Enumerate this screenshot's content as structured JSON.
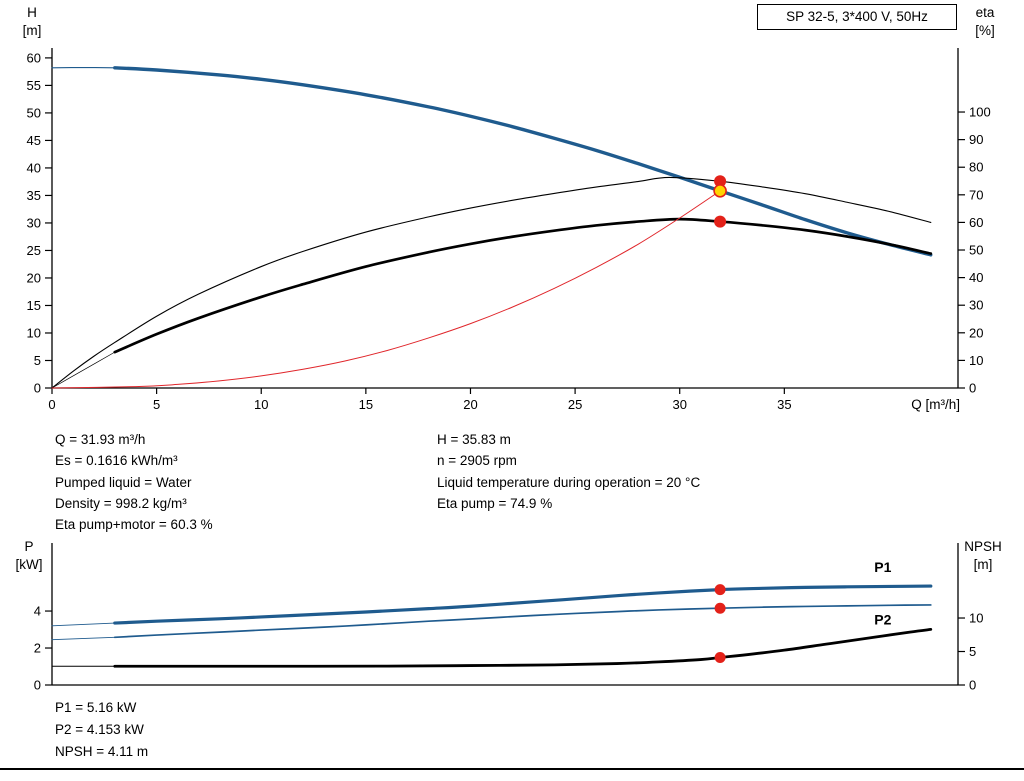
{
  "pump": {
    "model_box": "SP 32-5, 3*400 V, 50Hz"
  },
  "axis_titles": {
    "top_left_line1": "H",
    "top_left_line2": "[m]",
    "top_right_line1": "eta",
    "top_right_line2": "[%]",
    "x_axis": "Q [m³/h]",
    "bottom_left_line1": "P",
    "bottom_left_line2": "[kW]",
    "bottom_right_line1": "NPSH",
    "bottom_right_line2": "[m]"
  },
  "duty_info": {
    "left": [
      "Q = 31.93 m³/h",
      "Es = 0.1616 kWh/m³",
      "Pumped liquid = Water",
      "Density = 998.2 kg/m³",
      "Eta pump+motor = 60.3 %"
    ],
    "right": [
      "H = 35.83 m",
      "n = 2905 rpm",
      "Liquid temperature during operation = 20 °C",
      "Eta pump = 74.9 %"
    ]
  },
  "power_info": [
    "P1 = 5.16 kW",
    "P2 = 4.153 kW",
    "NPSH = 4.11 m"
  ],
  "colors": {
    "curve_blue": "#1f5b8e",
    "curve_black": "#000000",
    "system_red": "#e0262b",
    "marker_red": "#e32119",
    "marker_yellow": "#ffd400"
  },
  "chart_data": [
    {
      "type": "line",
      "title": "SP 32-5, 3*400 V, 50Hz",
      "xlabel": "Q [m³/h]",
      "ylabel_left": "H [m]",
      "ylabel_right": "eta [%]",
      "grid": false,
      "legend": "none",
      "x": {
        "min": 0,
        "max": 43.3,
        "ticks": [
          0,
          5,
          10,
          15,
          20,
          25,
          30,
          35
        ]
      },
      "yl": {
        "min": 0,
        "max": 61.8,
        "ticks": [
          0,
          5,
          10,
          15,
          20,
          25,
          30,
          35,
          40,
          45,
          50,
          55,
          60
        ]
      },
      "yr": {
        "min": 0,
        "max": 123.2,
        "ticks": [
          0,
          10,
          20,
          30,
          40,
          50,
          60,
          70,
          80,
          90,
          100
        ]
      },
      "series": [
        {
          "name": "H lead-in",
          "axis": "left",
          "color": "#1f5b8e",
          "width": 1.1,
          "points": [
            [
              0,
              58.2
            ],
            [
              1.5,
              58.25
            ],
            [
              3,
              58.2
            ]
          ]
        },
        {
          "name": "H curve",
          "axis": "left",
          "color": "#1f5b8e",
          "width": 3.4,
          "points": [
            [
              3,
              58.2
            ],
            [
              5,
              57.8
            ],
            [
              8,
              56.9
            ],
            [
              10,
              56.1
            ],
            [
              12,
              55.1
            ],
            [
              15,
              53.3
            ],
            [
              18,
              51.1
            ],
            [
              20,
              49.4
            ],
            [
              22,
              47.5
            ],
            [
              24,
              45.4
            ],
            [
              26,
              43.2
            ],
            [
              28,
              40.8
            ],
            [
              30,
              38.3
            ],
            [
              31.93,
              35.83
            ],
            [
              34,
              33.2
            ],
            [
              36,
              30.6
            ],
            [
              38,
              28.2
            ],
            [
              40,
              26.1
            ],
            [
              42,
              24.2
            ]
          ]
        },
        {
          "name": "eta pump",
          "axis": "right",
          "color": "#000000",
          "width": 1.1,
          "points": [
            [
              0,
              0
            ],
            [
              1,
              6
            ],
            [
              2,
              11.5
            ],
            [
              3,
              16.5
            ],
            [
              5,
              26
            ],
            [
              7,
              34
            ],
            [
              10,
              44
            ],
            [
              12,
              49.5
            ],
            [
              15,
              56.5
            ],
            [
              18,
              62
            ],
            [
              20,
              65.2
            ],
            [
              22,
              68
            ],
            [
              24,
              70.5
            ],
            [
              26,
              72.8
            ],
            [
              28,
              74.8
            ],
            [
              29.5,
              76.3
            ],
            [
              31.93,
              74.9
            ],
            [
              34,
              72.8
            ],
            [
              36,
              70.4
            ],
            [
              38,
              67.3
            ],
            [
              40,
              64
            ],
            [
              42,
              60
            ]
          ]
        },
        {
          "name": "eta pump+motor lead-in",
          "axis": "right",
          "color": "#000000",
          "width": 0.7,
          "points": [
            [
              0,
              0
            ],
            [
              1.5,
              6.5
            ],
            [
              3,
              13
            ]
          ]
        },
        {
          "name": "eta pump+motor",
          "axis": "right",
          "color": "#000000",
          "width": 2.7,
          "points": [
            [
              3,
              13
            ],
            [
              5,
              19.5
            ],
            [
              7,
              25.3
            ],
            [
              10,
              33
            ],
            [
              12,
              37.6
            ],
            [
              15,
              44
            ],
            [
              18,
              49.2
            ],
            [
              20,
              52.2
            ],
            [
              22,
              54.8
            ],
            [
              24,
              57
            ],
            [
              26,
              58.9
            ],
            [
              28,
              60.3
            ],
            [
              30,
              61.2
            ],
            [
              31.93,
              60.3
            ],
            [
              34,
              58.9
            ],
            [
              36,
              57.2
            ],
            [
              38,
              54.9
            ],
            [
              40,
              52.1
            ],
            [
              42,
              48.7
            ]
          ]
        },
        {
          "name": "system curve",
          "axis": "left",
          "color": "#e0262b",
          "width": 1.0,
          "points": [
            [
              0,
              0
            ],
            [
              4,
              0.25
            ],
            [
              6,
              0.65
            ],
            [
              8,
              1.3
            ],
            [
              10,
              2.2
            ],
            [
              12,
              3.4
            ],
            [
              14,
              4.9
            ],
            [
              16,
              6.8
            ],
            [
              18,
              9.1
            ],
            [
              20,
              11.7
            ],
            [
              22,
              14.7
            ],
            [
              24,
              18.1
            ],
            [
              26,
              21.9
            ],
            [
              28,
              26.1
            ],
            [
              30,
              30.9
            ],
            [
              31.93,
              35.83
            ]
          ]
        }
      ],
      "markers": [
        {
          "x": 31.93,
          "y": 74.9,
          "axis": "right",
          "r": 6,
          "fill": "#e32119"
        },
        {
          "x": 31.93,
          "y": 60.3,
          "axis": "right",
          "r": 6,
          "fill": "#e32119"
        },
        {
          "x": 31.93,
          "y": 35.83,
          "axis": "left",
          "r": 6,
          "fill": "#ffd400",
          "stroke": "#e32119"
        }
      ],
      "annotations": []
    },
    {
      "type": "line",
      "title": "",
      "xlabel": "Q [m³/h]",
      "ylabel_left": "P [kW]",
      "ylabel_right": "NPSH [m]",
      "grid": false,
      "legend": "none",
      "x": {
        "min": 0,
        "max": 43.3,
        "ticks": []
      },
      "yl": {
        "min": 0,
        "max": 7.68,
        "ticks": [
          0,
          2,
          4
        ]
      },
      "yr": {
        "min": 0,
        "max": 21.2,
        "ticks": [
          0,
          5,
          10
        ]
      },
      "series": [
        {
          "name": "P1 lead-in",
          "axis": "left",
          "color": "#1f5b8e",
          "width": 0.9,
          "points": [
            [
              0,
              3.2
            ],
            [
              3,
              3.35
            ]
          ]
        },
        {
          "name": "P1",
          "axis": "left",
          "color": "#1f5b8e",
          "width": 3.2,
          "points": [
            [
              3,
              3.35
            ],
            [
              5,
              3.45
            ],
            [
              8,
              3.58
            ],
            [
              10,
              3.68
            ],
            [
              13,
              3.84
            ],
            [
              15,
              3.95
            ],
            [
              18,
              4.13
            ],
            [
              20,
              4.26
            ],
            [
              23,
              4.5
            ],
            [
              25,
              4.66
            ],
            [
              27,
              4.83
            ],
            [
              29,
              4.98
            ],
            [
              31.93,
              5.16
            ],
            [
              34,
              5.23
            ],
            [
              36,
              5.28
            ],
            [
              38,
              5.31
            ],
            [
              40,
              5.33
            ],
            [
              42,
              5.35
            ]
          ]
        },
        {
          "name": "P2 lead-in",
          "axis": "left",
          "color": "#1f5b8e",
          "width": 0.9,
          "points": [
            [
              0,
              2.45
            ],
            [
              3,
              2.58
            ]
          ]
        },
        {
          "name": "P2",
          "axis": "left",
          "color": "#1f5b8e",
          "width": 1.7,
          "points": [
            [
              3,
              2.58
            ],
            [
              5,
              2.7
            ],
            [
              8,
              2.86
            ],
            [
              10,
              2.97
            ],
            [
              13,
              3.13
            ],
            [
              15,
              3.25
            ],
            [
              18,
              3.45
            ],
            [
              20,
              3.57
            ],
            [
              23,
              3.76
            ],
            [
              25,
              3.87
            ],
            [
              27,
              3.97
            ],
            [
              29,
              4.06
            ],
            [
              31.93,
              4.153
            ],
            [
              34,
              4.21
            ],
            [
              36,
              4.25
            ],
            [
              38,
              4.28
            ],
            [
              40,
              4.31
            ],
            [
              42,
              4.33
            ]
          ]
        },
        {
          "name": "NPSH lead-in",
          "axis": "right",
          "color": "#000000",
          "width": 0.9,
          "points": [
            [
              0,
              2.8
            ],
            [
              3,
              2.8
            ]
          ]
        },
        {
          "name": "NPSH",
          "axis": "right",
          "color": "#000000",
          "width": 2.8,
          "points": [
            [
              3,
              2.8
            ],
            [
              8,
              2.8
            ],
            [
              12,
              2.8
            ],
            [
              16,
              2.82
            ],
            [
              20,
              2.9
            ],
            [
              24,
              3.0
            ],
            [
              27,
              3.2
            ],
            [
              29,
              3.45
            ],
            [
              31,
              3.8
            ],
            [
              31.93,
              4.11
            ],
            [
              33,
              4.45
            ],
            [
              35,
              5.2
            ],
            [
              37,
              6.1
            ],
            [
              39,
              7.0
            ],
            [
              41,
              7.9
            ],
            [
              42,
              8.3
            ]
          ]
        }
      ],
      "markers": [
        {
          "x": 31.93,
          "y": 5.16,
          "axis": "left",
          "r": 5.5,
          "fill": "#e32119"
        },
        {
          "x": 31.93,
          "y": 4.153,
          "axis": "left",
          "r": 5.5,
          "fill": "#e32119"
        },
        {
          "x": 31.93,
          "y": 4.11,
          "axis": "right",
          "r": 5.5,
          "fill": "#e32119"
        }
      ],
      "annotations": [
        {
          "text": "P1",
          "x": 39.3,
          "y": 6.1,
          "axis": "left",
          "color": "#2e6da4"
        },
        {
          "text": "P2",
          "x": 39.3,
          "y": 3.28,
          "axis": "left",
          "color": "#2e6da4"
        }
      ]
    }
  ]
}
